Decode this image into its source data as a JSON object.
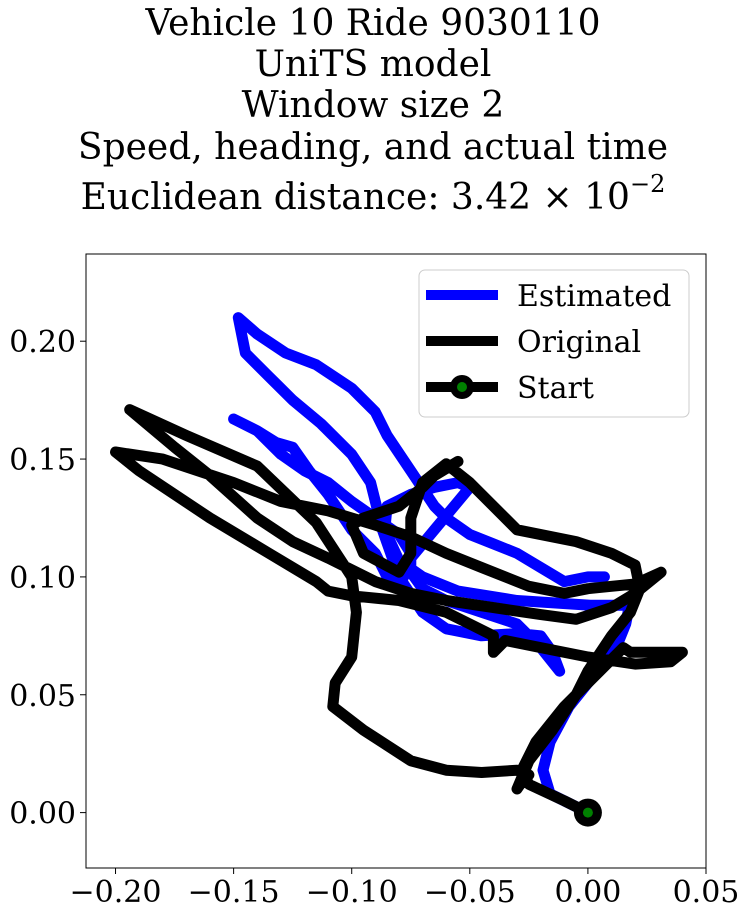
{
  "chart_data": {
    "type": "line",
    "title_lines": [
      "Vehicle 10 Ride 9030110",
      "UniTS model",
      "Window size 2",
      "Speed, heading, and actual time",
      "Euclidean distance: 3.42 × 10",
      "−2"
    ],
    "xlim": [
      -0.2125,
      0.05
    ],
    "ylim": [
      -0.0235,
      0.237
    ],
    "x_ticks": [
      -0.2,
      -0.15,
      -0.1,
      -0.05,
      0.0,
      0.05
    ],
    "x_tick_labels": [
      "−0.20",
      "−0.15",
      "−0.10",
      "−0.05",
      "0.00",
      "0.05"
    ],
    "y_ticks": [
      0.0,
      0.05,
      0.1,
      0.15,
      0.2
    ],
    "y_tick_labels": [
      "0.00",
      "0.05",
      "0.10",
      "0.15",
      "0.20"
    ],
    "legend_position": "top-right",
    "colors": {
      "estimated": "#0000ff",
      "original": "#000000",
      "start_marker": "#008000"
    },
    "series": [
      {
        "name": "Estimated",
        "x": [
          0.0,
          -0.016,
          -0.019,
          -0.016,
          -0.008,
          0.004,
          0.012,
          0.016,
          0.018,
          0.015,
          0.001,
          -0.03,
          -0.055,
          -0.07,
          -0.08,
          -0.086,
          -0.085,
          -0.075,
          -0.065,
          -0.055,
          -0.05,
          -0.055,
          -0.065,
          -0.075,
          -0.08,
          -0.085,
          -0.09,
          -0.1,
          -0.11,
          -0.118,
          -0.125,
          -0.132,
          -0.14,
          -0.15,
          -0.14,
          -0.13,
          -0.12,
          -0.11,
          -0.1,
          -0.09,
          -0.08,
          -0.075,
          -0.075,
          -0.07,
          -0.06,
          -0.045,
          -0.03,
          -0.02,
          -0.012,
          -0.015,
          -0.02,
          -0.03,
          -0.045,
          -0.06,
          -0.07,
          -0.08,
          -0.087,
          -0.092,
          -0.1,
          -0.113,
          -0.125,
          -0.135,
          -0.145,
          -0.148,
          -0.14,
          -0.128,
          -0.115,
          -0.1,
          -0.092,
          -0.09,
          -0.085,
          -0.075,
          -0.065,
          -0.06,
          -0.05,
          -0.04,
          -0.03,
          -0.02,
          -0.01,
          0.0,
          0.007
        ],
        "y": [
          0.0,
          0.008,
          0.018,
          0.03,
          0.045,
          0.06,
          0.07,
          0.08,
          0.09,
          0.088,
          0.088,
          0.09,
          0.094,
          0.1,
          0.107,
          0.12,
          0.13,
          0.135,
          0.138,
          0.14,
          0.138,
          0.132,
          0.12,
          0.108,
          0.095,
          0.1,
          0.11,
          0.12,
          0.135,
          0.145,
          0.155,
          0.157,
          0.162,
          0.167,
          0.162,
          0.152,
          0.145,
          0.14,
          0.132,
          0.125,
          0.118,
          0.11,
          0.102,
          0.095,
          0.09,
          0.085,
          0.08,
          0.07,
          0.06,
          0.068,
          0.075,
          0.076,
          0.075,
          0.078,
          0.085,
          0.1,
          0.12,
          0.14,
          0.152,
          0.165,
          0.175,
          0.185,
          0.195,
          0.21,
          0.203,
          0.195,
          0.19,
          0.18,
          0.172,
          0.17,
          0.16,
          0.145,
          0.13,
          0.125,
          0.118,
          0.114,
          0.11,
          0.104,
          0.098,
          0.1,
          0.1
        ]
      },
      {
        "name": "Original",
        "x": [
          0.0,
          -0.01,
          -0.025,
          -0.028,
          -0.022,
          -0.01,
          0.005,
          0.015,
          0.018,
          0.03,
          0.04,
          0.035,
          0.02,
          0.0,
          -0.02,
          -0.035,
          -0.04,
          -0.04,
          -0.05,
          -0.06,
          -0.08,
          -0.1,
          -0.11,
          -0.115,
          -0.135,
          -0.16,
          -0.19,
          -0.2,
          -0.18,
          -0.15,
          -0.13,
          -0.11,
          -0.09,
          -0.075,
          -0.06,
          -0.045,
          -0.025,
          -0.01,
          0.0,
          0.01,
          0.02,
          0.031,
          0.02,
          0.01,
          -0.005,
          -0.02,
          -0.04,
          -0.06,
          -0.075,
          -0.09,
          -0.11,
          -0.125,
          -0.14,
          -0.16,
          -0.175,
          -0.194,
          -0.17,
          -0.14,
          -0.115,
          -0.1,
          -0.098,
          -0.1,
          -0.107,
          -0.108,
          -0.095,
          -0.075,
          -0.06,
          -0.045,
          -0.03,
          -0.025,
          -0.028,
          -0.03,
          -0.025,
          -0.015,
          -0.005,
          0.0,
          0.01,
          0.018,
          0.022,
          0.02,
          0.01,
          -0.005,
          -0.03,
          -0.05,
          -0.06,
          -0.07,
          -0.075,
          -0.075,
          -0.08,
          -0.095,
          -0.1,
          -0.095,
          -0.08,
          -0.07,
          -0.065,
          -0.055
        ],
        "y": [
          0.0,
          0.005,
          0.012,
          0.018,
          0.03,
          0.045,
          0.06,
          0.07,
          0.068,
          0.068,
          0.068,
          0.064,
          0.063,
          0.066,
          0.07,
          0.073,
          0.068,
          0.075,
          0.08,
          0.085,
          0.09,
          0.092,
          0.094,
          0.098,
          0.11,
          0.125,
          0.145,
          0.153,
          0.15,
          0.14,
          0.132,
          0.128,
          0.122,
          0.117,
          0.11,
          0.104,
          0.096,
          0.093,
          0.095,
          0.096,
          0.097,
          0.102,
          0.093,
          0.087,
          0.082,
          0.084,
          0.087,
          0.09,
          0.093,
          0.098,
          0.108,
          0.115,
          0.125,
          0.143,
          0.155,
          0.171,
          0.16,
          0.147,
          0.123,
          0.1,
          0.085,
          0.066,
          0.055,
          0.045,
          0.035,
          0.022,
          0.018,
          0.017,
          0.018,
          0.016,
          0.013,
          0.01,
          0.022,
          0.035,
          0.05,
          0.06,
          0.075,
          0.085,
          0.095,
          0.105,
          0.11,
          0.115,
          0.12,
          0.14,
          0.148,
          0.14,
          0.125,
          0.11,
          0.102,
          0.11,
          0.122,
          0.125,
          0.13,
          0.138,
          0.143,
          0.149
        ]
      },
      {
        "name": "Start",
        "x": [
          0.0
        ],
        "y": [
          0.0
        ]
      }
    ]
  }
}
